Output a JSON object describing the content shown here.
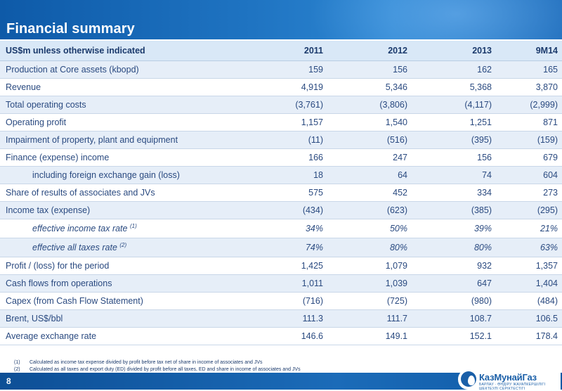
{
  "title": "Financial summary",
  "table": {
    "header": [
      "US$m unless otherwise indicated",
      "2011",
      "2012",
      "2013",
      "9M14"
    ],
    "rows": [
      {
        "label": "Production at Core assets (kbopd)",
        "values": [
          "159",
          "156",
          "162",
          "165"
        ]
      },
      {
        "label": "Revenue",
        "values": [
          "4,919",
          "5,346",
          "5,368",
          "3,870"
        ]
      },
      {
        "label": "Total operating costs",
        "values": [
          "(3,761)",
          "(3,806)",
          "(4,117)",
          "(2,999)"
        ]
      },
      {
        "label": "Operating profit",
        "values": [
          "1,157",
          "1,540",
          "1,251",
          "871"
        ]
      },
      {
        "label": "Impairment of property, plant and equipment",
        "values": [
          "(11)",
          "(516)",
          "(395)",
          "(159)"
        ]
      },
      {
        "label": "Finance (expense) income",
        "values": [
          "166",
          "247",
          "156",
          "679"
        ]
      },
      {
        "label": "including foreign exchange gain (loss)",
        "values": [
          "18",
          "64",
          "74",
          "604"
        ]
      },
      {
        "label": "Share of results of associates and JVs",
        "values": [
          "575",
          "452",
          "334",
          "273"
        ]
      },
      {
        "label": "Income tax (expense)",
        "values": [
          "(434)",
          "(623)",
          "(385)",
          "(295)"
        ]
      },
      {
        "label": "effective income tax rate",
        "sup": "(1)",
        "values": [
          "34%",
          "50%",
          "39%",
          "21%"
        ]
      },
      {
        "label": "effective all taxes rate",
        "sup": "(2)",
        "values": [
          "74%",
          "80%",
          "80%",
          "63%"
        ]
      },
      {
        "label": "Profit / (loss) for the period",
        "values": [
          "1,425",
          "1,079",
          "932",
          "1,357"
        ]
      },
      {
        "label": "Cash flows from operations",
        "values": [
          "1,011",
          "1,039",
          "647",
          "1,404"
        ]
      },
      {
        "label": "Capex (from Cash Flow Statement)",
        "values": [
          "(716)",
          "(725)",
          "(980)",
          "(484)"
        ]
      },
      {
        "label": "Brent, US$/bbl",
        "values": [
          "111.3",
          "111.7",
          "108.7",
          "106.5"
        ]
      },
      {
        "label": "Average exchange rate",
        "values": [
          "146.6",
          "149.1",
          "152.1",
          "178.4"
        ]
      }
    ]
  },
  "footnotes": [
    {
      "mark": "(1)",
      "text": "Calculated as income tax expense divided by profit before tax net of share in income of associates and JVs"
    },
    {
      "mark": "(2)",
      "text": "Calculated as all taxes and export duty (ED) divided by profit before all taxes, ED and share in income of associates and JVs"
    }
  ],
  "page_number": "8",
  "logo": {
    "name": "КазМунайГаз",
    "tagline": "БАРЛАУ · ӨНДІРУ ЖАУАПКЕРШІЛІГІ ШЕКТЕУЛІ СЕРІКТЕСТІГІ"
  },
  "colors": {
    "brand_blue": "#1a5fa8",
    "header_row": "#d9e8f7",
    "alt_row": "#e6eef8",
    "text": "#2a4a80"
  }
}
